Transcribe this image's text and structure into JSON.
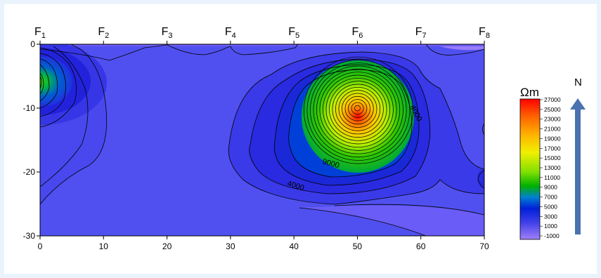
{
  "chart_data": {
    "type": "heatmap",
    "subtype": "filled-contour",
    "x_ticks": [
      0,
      10,
      20,
      30,
      40,
      50,
      60,
      70
    ],
    "y_ticks": [
      0,
      -10,
      -20,
      -30
    ],
    "xlim": [
      0,
      70
    ],
    "ylim": [
      -30,
      0
    ],
    "profile_points": [
      {
        "letter": "F",
        "sub": "1",
        "x": 0
      },
      {
        "letter": "F",
        "sub": "2",
        "x": 10
      },
      {
        "letter": "F",
        "sub": "3",
        "x": 20
      },
      {
        "letter": "F",
        "sub": "4",
        "x": 30
      },
      {
        "letter": "F",
        "sub": "5",
        "x": 40
      },
      {
        "letter": "F",
        "sub": "6",
        "x": 50
      },
      {
        "letter": "F",
        "sub": "7",
        "x": 60
      },
      {
        "letter": "F",
        "sub": "8",
        "x": 70
      }
    ],
    "colorbar": {
      "unit": "Ωm",
      "levels": [
        27000,
        25000,
        23000,
        21000,
        19000,
        17000,
        15000,
        13000,
        11000,
        9000,
        7000,
        5000,
        3000,
        1000,
        -1000
      ],
      "colors": [
        "#ff0000",
        "#ff4000",
        "#ff8000",
        "#ffb000",
        "#ffd800",
        "#f0f000",
        "#c0f000",
        "#80e000",
        "#40d000",
        "#00b000",
        "#0060e0",
        "#0020d8",
        "#3030e0",
        "#5050f0",
        "#9a7cf8"
      ]
    },
    "contour_labels": [
      "4000",
      "9000",
      "4000"
    ],
    "peaks": [
      {
        "x": 50,
        "y": -10,
        "value": 27000
      },
      {
        "x": 0,
        "y": -5,
        "value": 9000
      }
    ],
    "north_label": "N"
  }
}
